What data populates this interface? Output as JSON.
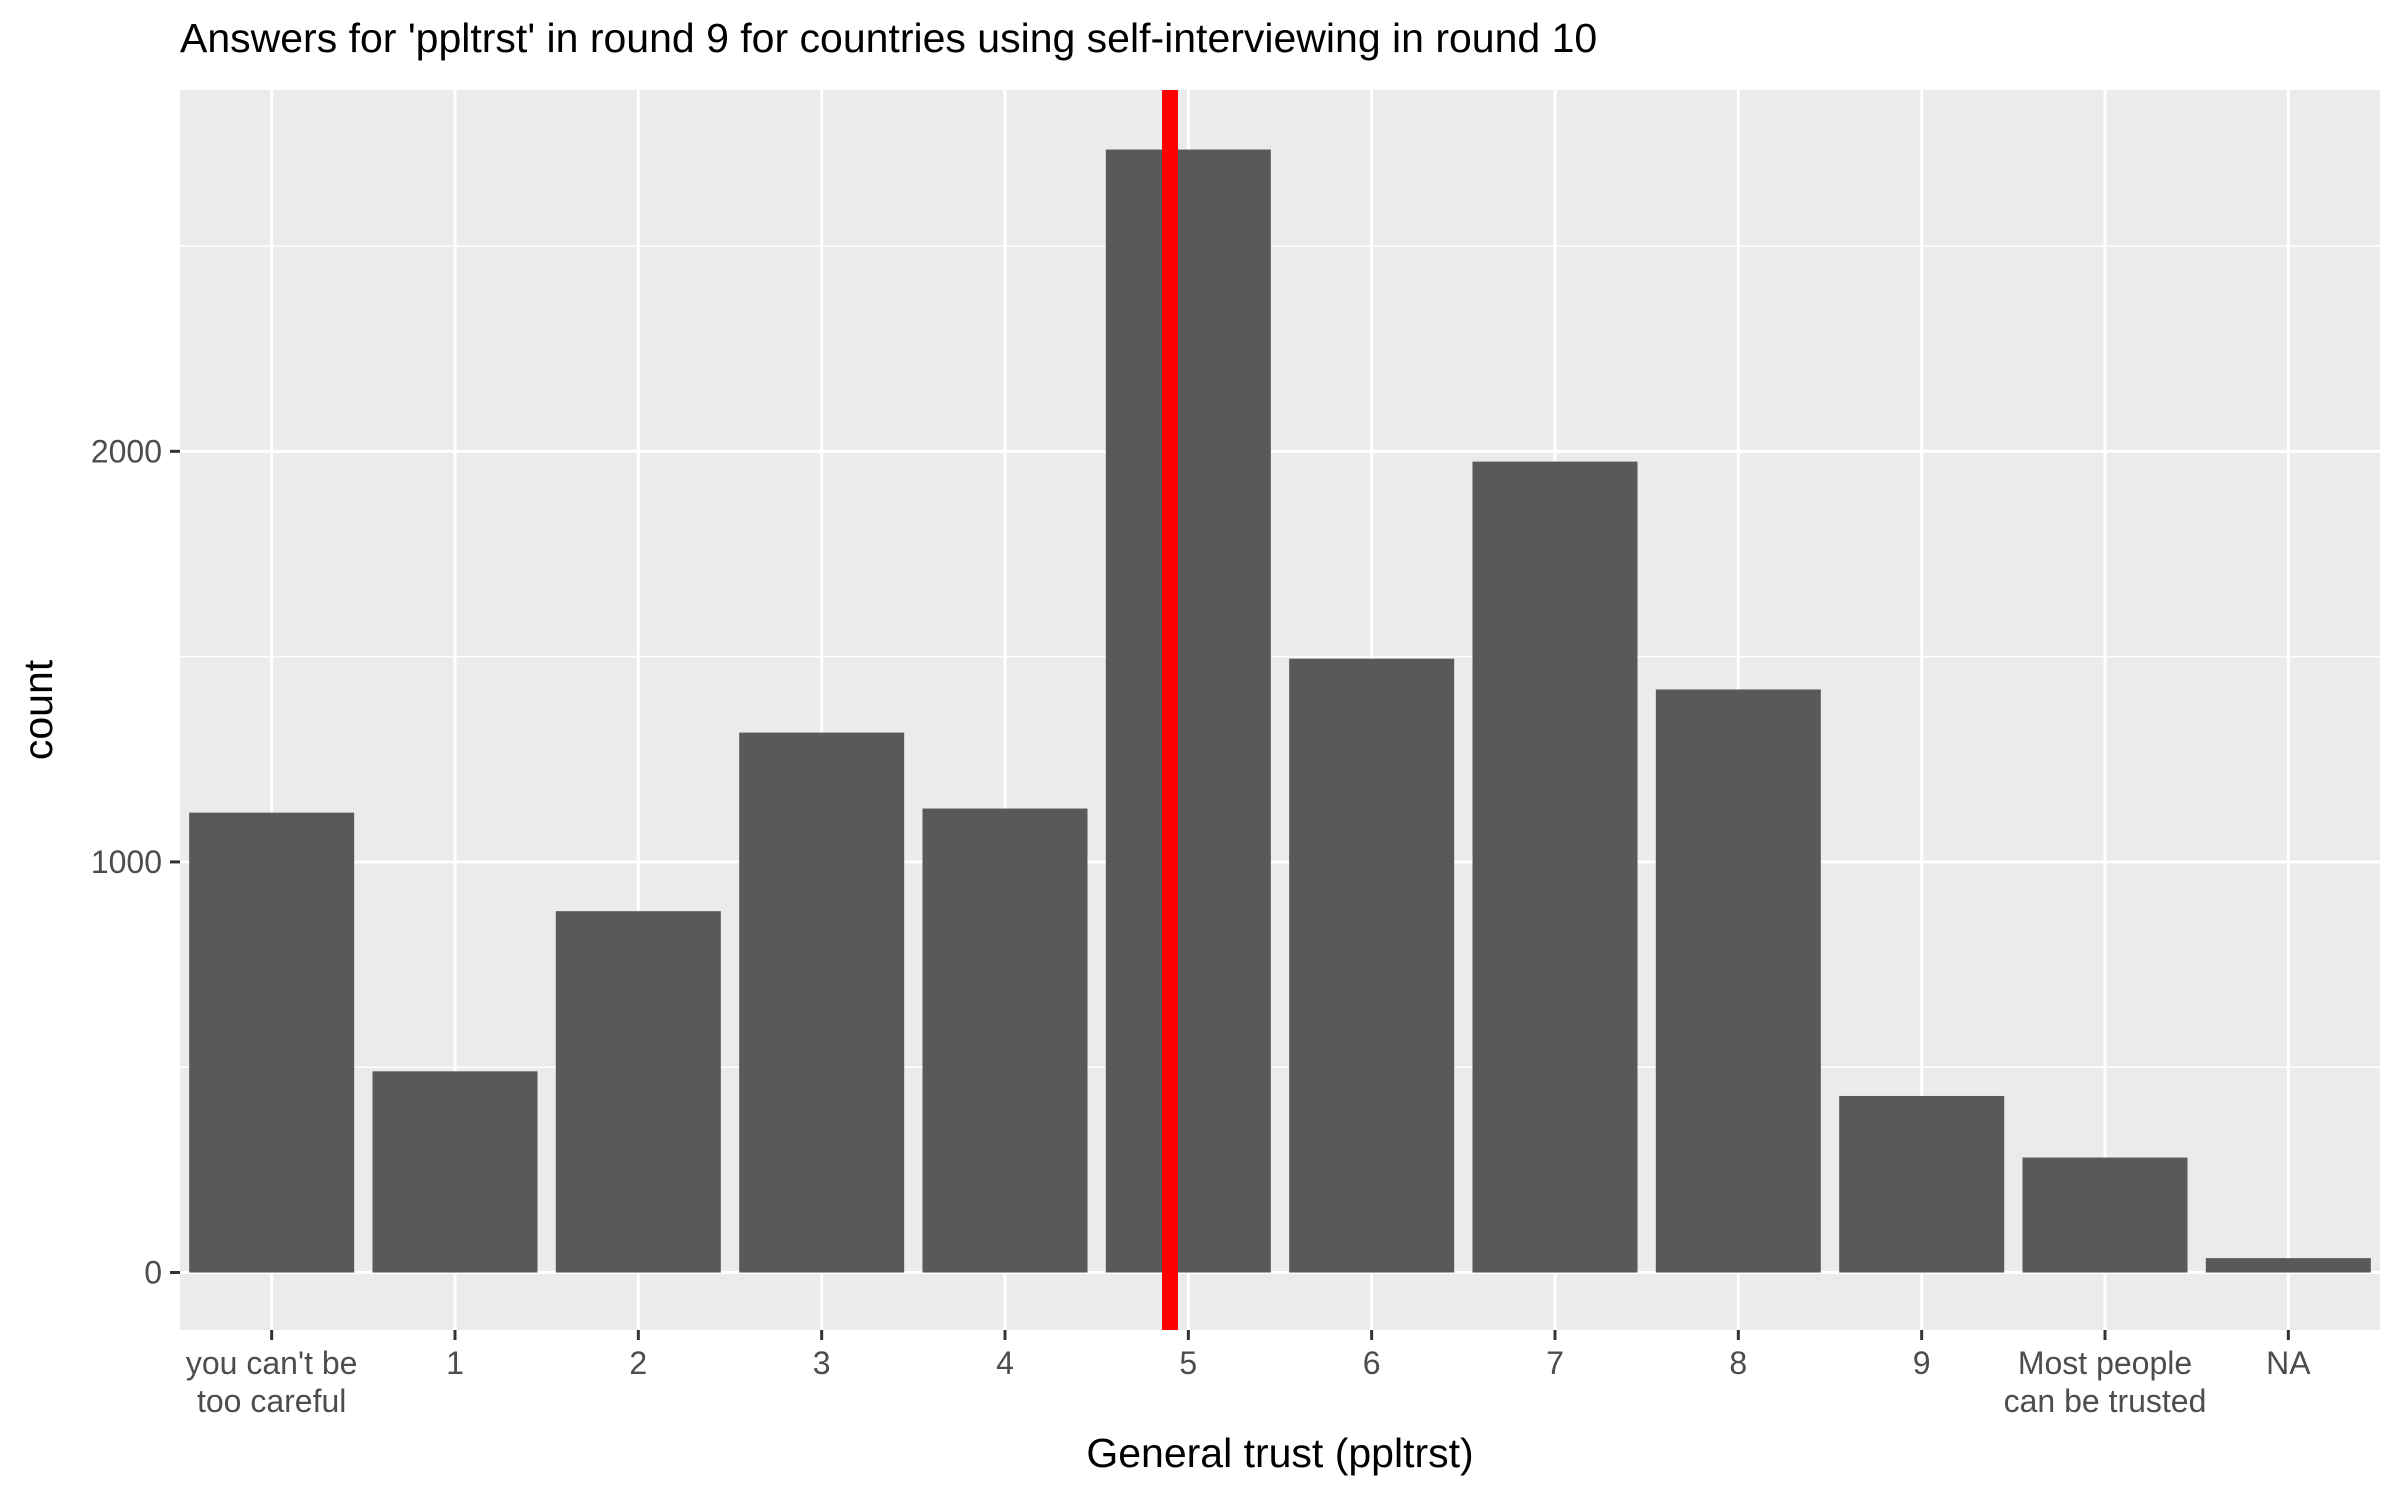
{
  "chart_data": {
    "type": "bar",
    "title": "Answers for 'ppltrst' in round 9 for countries using self-interviewing in round 10",
    "xlabel": "General trust (ppltrst)",
    "ylabel": "count",
    "categories": [
      "you can't be\ntoo careful",
      "1",
      "2",
      "3",
      "4",
      "5",
      "6",
      "7",
      "8",
      "9",
      "Most people\ncan  be trusted",
      "NA"
    ],
    "values": [
      1120,
      490,
      880,
      1315,
      1130,
      2735,
      1495,
      1975,
      1420,
      430,
      280,
      35
    ],
    "ylim": [
      -140,
      2880
    ],
    "yticks": [
      0,
      1000,
      2000
    ],
    "y_minor_ticks": [
      500,
      1500,
      2500
    ],
    "grid": true,
    "reference_line": {
      "x_category_position": 5.9,
      "color": "#FF0000"
    },
    "colors": {
      "bar": "#595959",
      "panel": "#EBEBEB",
      "grid": "#FFFFFF",
      "reference_line": "#FF0000"
    }
  }
}
